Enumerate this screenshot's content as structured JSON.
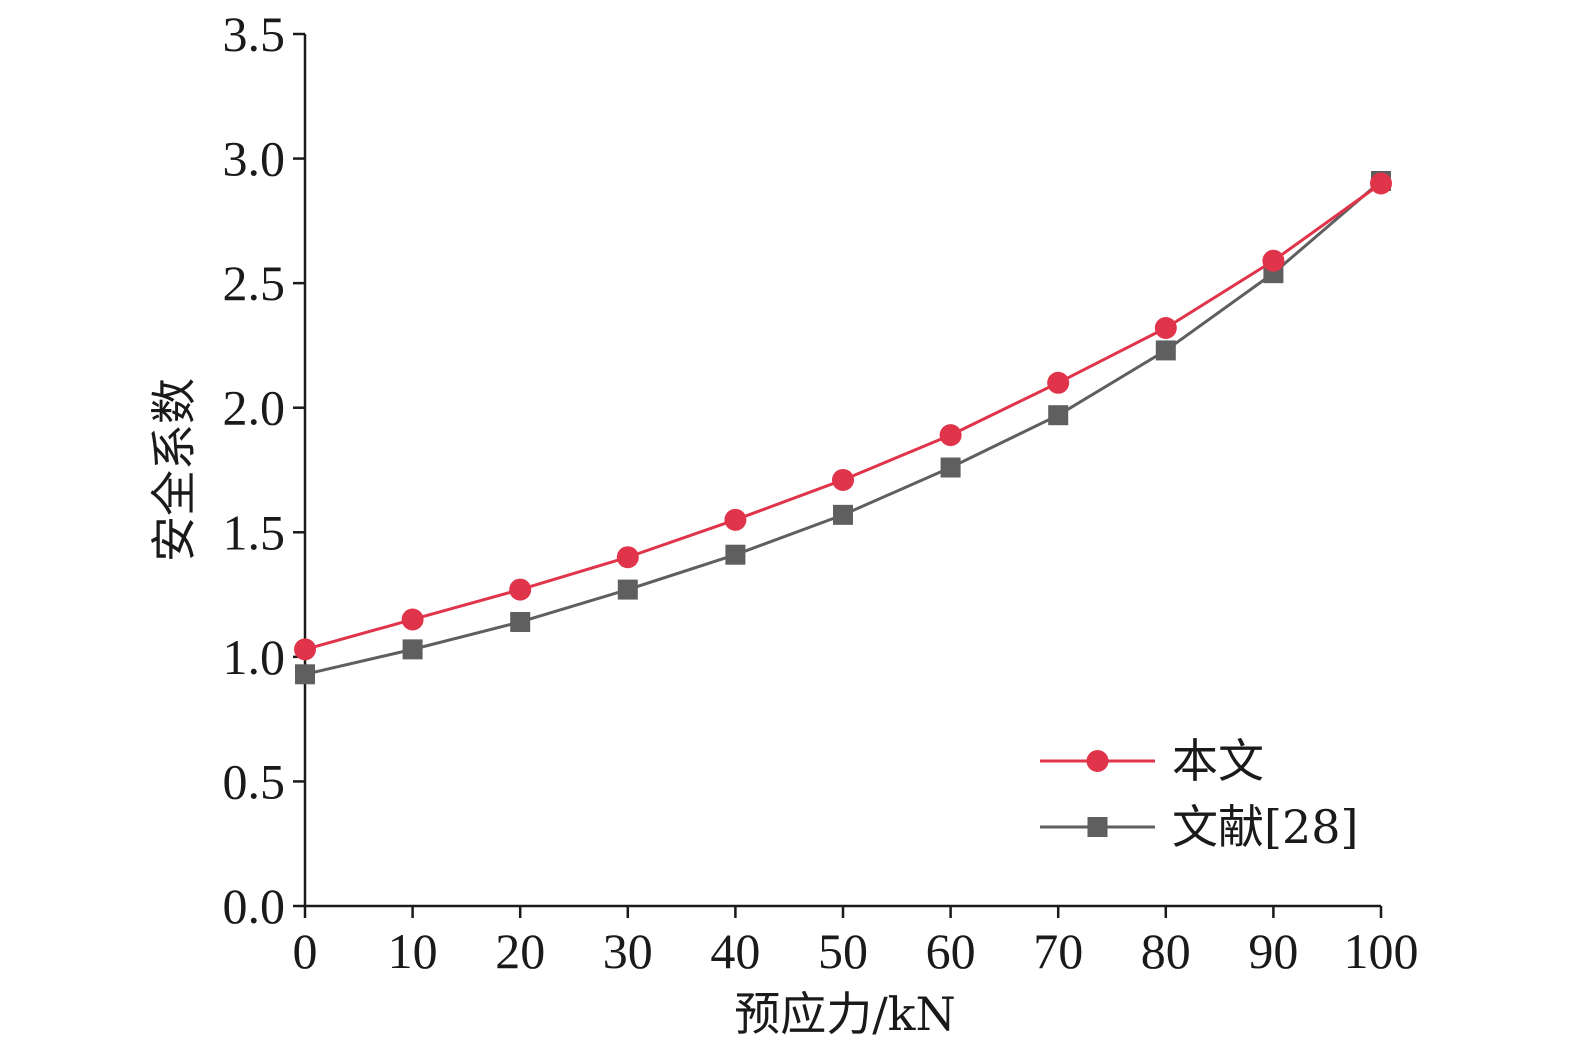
{
  "chart_data": {
    "type": "line",
    "xlabel": "预应力/kN",
    "ylabel": "安全系数",
    "xlim": [
      0,
      100
    ],
    "ylim": [
      0,
      3.5
    ],
    "x": [
      0,
      10,
      20,
      30,
      40,
      50,
      60,
      70,
      80,
      90,
      100
    ],
    "x_ticks": [
      "0",
      "10",
      "20",
      "30",
      "40",
      "50",
      "60",
      "70",
      "80",
      "90",
      "100"
    ],
    "y_ticks": [
      "0.0",
      "0.5",
      "1.0",
      "1.5",
      "2.0",
      "2.5",
      "3.0",
      "3.5"
    ],
    "grid": false,
    "legend_position": "bottom-right",
    "series": [
      {
        "name": "本文",
        "marker": "circle",
        "color": "#E0344A",
        "values": [
          1.03,
          1.15,
          1.27,
          1.4,
          1.55,
          1.71,
          1.89,
          2.1,
          2.32,
          2.59,
          2.9
        ]
      },
      {
        "name": "文献[28]",
        "marker": "square",
        "color": "#5F5F5F",
        "values": [
          0.93,
          1.03,
          1.14,
          1.27,
          1.41,
          1.57,
          1.76,
          1.97,
          2.23,
          2.54,
          2.91
        ]
      }
    ]
  }
}
